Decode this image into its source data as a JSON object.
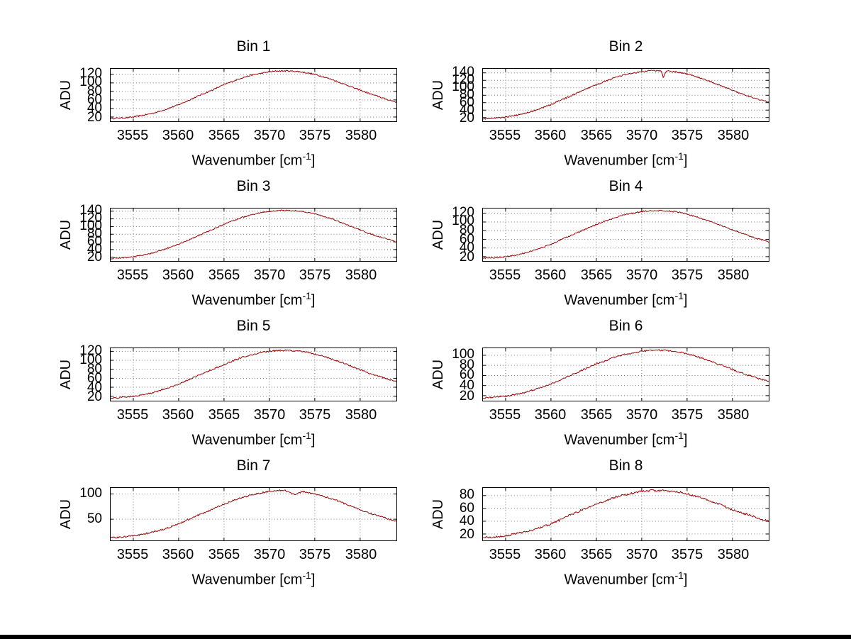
{
  "figure": {
    "background": "#ffffff",
    "line_color": "#990000",
    "grid_color": "#737373",
    "axis_color": "#000000"
  },
  "chart_data": [
    {
      "type": "line",
      "title": "Bin 1",
      "xlabel": {
        "pre": "Wavenumber [cm",
        "sup": "-1",
        "post": "]"
      },
      "ylabel": "ADU",
      "x": {
        "start": 3552,
        "step": 1
      },
      "values": [
        16,
        17,
        18,
        20,
        24,
        28,
        34,
        41,
        49,
        58,
        68,
        77,
        86,
        96,
        104,
        112,
        118,
        122,
        126,
        128,
        128,
        127,
        124,
        120,
        114,
        107,
        99,
        91,
        83,
        75,
        68,
        61,
        55
      ],
      "x_ticks": [
        3555,
        3560,
        3565,
        3570,
        3575,
        3580
      ],
      "y_ticks": [
        20,
        40,
        60,
        80,
        100,
        120
      ],
      "xlim": [
        3552.5,
        3584
      ],
      "ylim": [
        10,
        133
      ],
      "grid": true,
      "noise": 1.5,
      "dip": null
    },
    {
      "type": "line",
      "title": "Bin 2",
      "xlabel": {
        "pre": "Wavenumber [cm",
        "sup": "-1",
        "post": "]"
      },
      "ylabel": "ADU",
      "x": {
        "start": 3552,
        "step": 1
      },
      "values": [
        16,
        17,
        19,
        21,
        25,
        31,
        37,
        46,
        55,
        66,
        76,
        87,
        98,
        108,
        118,
        127,
        134,
        139,
        143,
        146,
        146,
        145,
        142,
        137,
        130,
        122,
        112,
        103,
        94,
        84,
        76,
        68,
        62
      ],
      "x_ticks": [
        3555,
        3560,
        3565,
        3570,
        3575,
        3580
      ],
      "y_ticks": [
        20,
        40,
        60,
        80,
        100,
        120,
        140
      ],
      "xlim": [
        3552.5,
        3584
      ],
      "ylim": [
        10,
        151
      ],
      "grid": true,
      "noise": 1.8,
      "dip": {
        "x": 3572.4,
        "depth": 17,
        "width": 0.18
      }
    },
    {
      "type": "line",
      "title": "Bin 3",
      "xlabel": {
        "pre": "Wavenumber [cm",
        "sup": "-1",
        "post": "]"
      },
      "ylabel": "ADU",
      "x": {
        "start": 3552,
        "step": 1
      },
      "values": [
        16,
        17,
        19,
        21,
        25,
        30,
        37,
        45,
        54,
        64,
        74,
        85,
        95,
        106,
        115,
        124,
        130,
        136,
        139,
        142,
        142,
        141,
        138,
        133,
        126,
        119,
        110,
        100,
        91,
        82,
        74,
        67,
        60
      ],
      "x_ticks": [
        3555,
        3560,
        3565,
        3570,
        3575,
        3580
      ],
      "y_ticks": [
        20,
        40,
        60,
        80,
        100,
        120,
        140
      ],
      "xlim": [
        3552.5,
        3584
      ],
      "ylim": [
        10,
        147
      ],
      "grid": true,
      "noise": 1.5,
      "dip": null
    },
    {
      "type": "line",
      "title": "Bin 4",
      "xlabel": {
        "pre": "Wavenumber [cm",
        "sup": "-1",
        "post": "]"
      },
      "ylabel": "ADU",
      "x": {
        "start": 3552,
        "step": 1
      },
      "values": [
        15,
        17,
        18,
        20,
        23,
        28,
        34,
        41,
        48,
        58,
        67,
        76,
        85,
        94,
        102,
        110,
        116,
        120,
        124,
        126,
        126,
        125,
        123,
        118,
        112,
        105,
        98,
        90,
        82,
        74,
        67,
        60,
        54
      ],
      "x_ticks": [
        3555,
        3560,
        3565,
        3570,
        3575,
        3580
      ],
      "y_ticks": [
        20,
        40,
        60,
        80,
        100,
        120
      ],
      "xlim": [
        3552.5,
        3584
      ],
      "ylim": [
        10,
        131
      ],
      "grid": true,
      "noise": 1.5,
      "dip": null
    },
    {
      "type": "line",
      "title": "Bin 5",
      "xlabel": {
        "pre": "Wavenumber [cm",
        "sup": "-1",
        "post": "]"
      },
      "ylabel": "ADU",
      "x": {
        "start": 3552,
        "step": 1
      },
      "values": [
        15,
        16,
        18,
        20,
        23,
        27,
        33,
        40,
        47,
        56,
        65,
        74,
        82,
        91,
        99,
        107,
        112,
        117,
        120,
        122,
        122,
        121,
        119,
        114,
        109,
        102,
        95,
        87,
        79,
        71,
        65,
        58,
        53
      ],
      "x_ticks": [
        3555,
        3560,
        3565,
        3570,
        3575,
        3580
      ],
      "y_ticks": [
        20,
        40,
        60,
        80,
        100,
        120
      ],
      "xlim": [
        3552.5,
        3584
      ],
      "ylim": [
        10,
        127
      ],
      "grid": true,
      "noise": 1.5,
      "dip": null
    },
    {
      "type": "line",
      "title": "Bin 6",
      "xlabel": {
        "pre": "Wavenumber [cm",
        "sup": "-1",
        "post": "]"
      },
      "ylabel": "ADU",
      "x": {
        "start": 3552,
        "step": 1
      },
      "values": [
        15,
        16,
        17,
        19,
        22,
        26,
        31,
        37,
        43,
        51,
        59,
        67,
        75,
        83,
        89,
        96,
        101,
        105,
        108,
        110,
        110,
        109,
        107,
        103,
        98,
        92,
        86,
        79,
        72,
        65,
        59,
        53,
        48
      ],
      "x_ticks": [
        3555,
        3560,
        3565,
        3570,
        3575,
        3580
      ],
      "y_ticks": [
        20,
        40,
        60,
        80,
        100
      ],
      "xlim": [
        3552.5,
        3584
      ],
      "ylim": [
        10,
        114
      ],
      "grid": true,
      "noise": 1.5,
      "dip": null
    },
    {
      "type": "line",
      "title": "Bin 7",
      "xlabel": {
        "pre": "Wavenumber [cm",
        "sup": "-1",
        "post": "]"
      },
      "ylabel": "ADU",
      "x": {
        "start": 3552,
        "step": 1
      },
      "values": [
        13,
        14,
        15,
        17,
        20,
        24,
        28,
        34,
        41,
        49,
        57,
        64,
        72,
        80,
        87,
        93,
        98,
        102,
        105,
        107,
        107,
        106,
        104,
        100,
        95,
        90,
        83,
        76,
        69,
        62,
        57,
        51,
        46
      ],
      "x_ticks": [
        3555,
        3560,
        3565,
        3570,
        3575,
        3580
      ],
      "y_ticks": [
        50,
        100
      ],
      "xlim": [
        3552.5,
        3584
      ],
      "ylim": [
        8,
        112
      ],
      "grid": true,
      "noise": 1.5,
      "dip": {
        "x": 3572.7,
        "depth": 7,
        "width": 0.6
      }
    },
    {
      "type": "line",
      "title": "Bin 8",
      "xlabel": {
        "pre": "Wavenumber [cm",
        "sup": "-1",
        "post": "]"
      },
      "ylabel": "ADU",
      "x": {
        "start": 3552,
        "step": 1
      },
      "values": [
        14,
        15,
        16,
        17,
        20,
        23,
        26,
        31,
        36,
        42,
        49,
        55,
        61,
        67,
        72,
        77,
        81,
        84,
        87,
        88,
        88,
        87,
        86,
        83,
        79,
        74,
        69,
        64,
        58,
        53,
        49,
        44,
        40
      ],
      "x_ticks": [
        3555,
        3560,
        3565,
        3570,
        3575,
        3580
      ],
      "y_ticks": [
        20,
        40,
        60,
        80
      ],
      "xlim": [
        3552.5,
        3584
      ],
      "ylim": [
        10,
        92
      ],
      "grid": true,
      "noise": 1.5,
      "dip": null
    }
  ]
}
